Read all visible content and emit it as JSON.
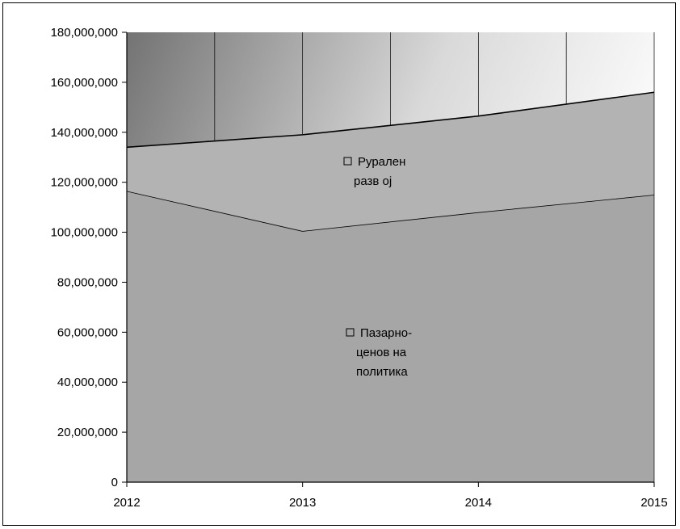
{
  "chart_data": {
    "type": "area",
    "stacked": true,
    "x": [
      "2012",
      "2013",
      "2014",
      "2015"
    ],
    "series": [
      {
        "name": "Пазарно-ценовна политика",
        "label_lines": [
          "Пазарно-",
          "ценов на",
          "политика"
        ],
        "values": [
          116500000,
          100500000,
          108000000,
          115000000
        ],
        "color": "#a6a6a6"
      },
      {
        "name": "Рурален развој",
        "label_lines": [
          "Рурален",
          "разв ој"
        ],
        "values": [
          17500000,
          38500000,
          38500000,
          41000000
        ],
        "color": "#b3b3b3"
      }
    ],
    "ylim": [
      0,
      180000000
    ],
    "yticks": [
      "0",
      "20,000,000",
      "40,000,000",
      "60,000,000",
      "80,000,000",
      "100,000,000",
      "120,000,000",
      "140,000,000",
      "160,000,000",
      "180,000,000"
    ],
    "grid": "vertical",
    "legend": "inline labels",
    "background": "gradient dark-gray to white",
    "title": "",
    "xlabel": "",
    "ylabel": ""
  }
}
